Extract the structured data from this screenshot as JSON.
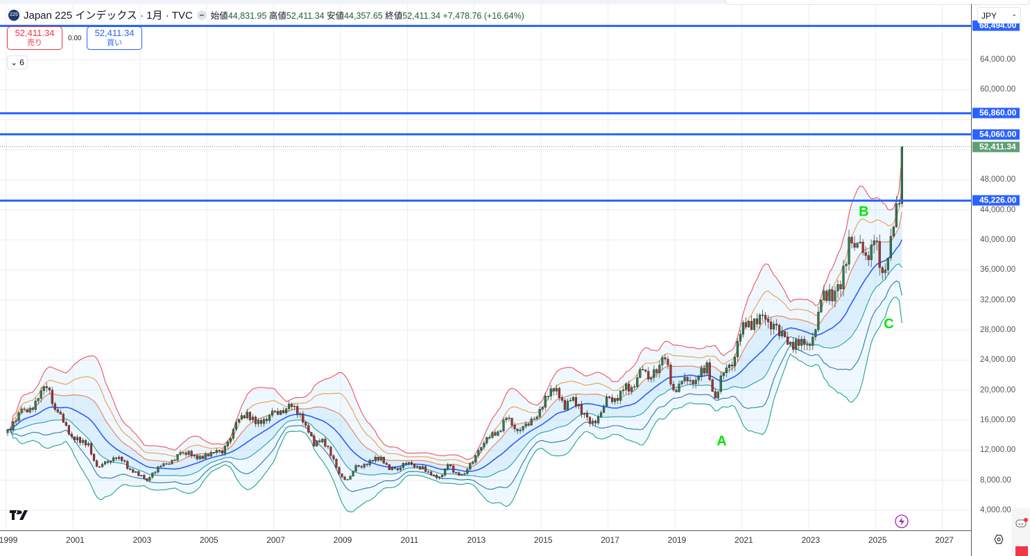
{
  "header": {
    "symbol_badge": "225",
    "title": "Japan 225 インデックス · 1月 · TVC",
    "open_label": "始値",
    "open": "44,831.95",
    "high_label": "高値",
    "high": "52,411.34",
    "low_label": "安値",
    "low": "44,357.65",
    "close_label": "終値",
    "close": "52,411.34",
    "change": "+7,478.76 (+16.64%)"
  },
  "trade": {
    "sell_price": "52,411.34",
    "sell_label": "売り",
    "spread": "0.00",
    "buy_price": "52,411.34",
    "buy_label": "買い"
  },
  "indicators_collapse": {
    "count": "6"
  },
  "currency": "JPY",
  "colors": {
    "up": "#2f7a4e",
    "down": "#a8322a",
    "hline": "#2962ff",
    "last": "#5f9e76",
    "annotation": "#00e600"
  },
  "chart_data": {
    "type": "candlestick",
    "title": "Japan 225 インデックス · 1月 · TVC",
    "interval": "monthly",
    "start": {
      "year": 1999,
      "month": 1
    },
    "quarterly_closes": [
      15800,
      17500,
      17600,
      18900,
      20300,
      17400,
      15700,
      13800,
      13000,
      12900,
      9800,
      10500,
      11000,
      10600,
      9400,
      8600,
      7970,
      9080,
      10200,
      10680,
      11700,
      11860,
      10820,
      11490,
      11670,
      11580,
      13570,
      16110,
      17060,
      15500,
      16130,
      17230,
      17290,
      18140,
      16790,
      15300,
      12530,
      13480,
      11260,
      8860,
      8110,
      9960,
      10130,
      10550,
      11090,
      9380,
      9370,
      10230,
      9750,
      9820,
      8700,
      8450,
      10080,
      9000,
      8870,
      10400,
      12400,
      13680,
      14450,
      16290,
      14830,
      15160,
      16170,
      17450,
      19200,
      20240,
      17390,
      19030,
      16760,
      15580,
      16450,
      19110,
      18910,
      20030,
      20360,
      22760,
      21450,
      22300,
      24120,
      20010,
      21200,
      21280,
      21760,
      23660,
      18920,
      22290,
      23190,
      27440,
      29180,
      28790,
      29450,
      28790,
      27820,
      26390,
      25940,
      26090,
      28040,
      33190,
      31860,
      33460,
      40370,
      39580,
      37920,
      39890,
      35620,
      40490,
      44831.95,
      52411.34
    ],
    "last_candle": {
      "year": 2025,
      "month": 10,
      "open": 44831.95,
      "high": 52411.34,
      "low": 44357.65,
      "close": 52411.34
    },
    "indicator": {
      "type": "bollinger",
      "period": 20,
      "multipliers": [
        1,
        2,
        3
      ]
    },
    "ylim": [
      4000,
      70800
    ],
    "xlim": [
      1999,
      2028.1
    ],
    "y_ticks": [
      "4,000.00",
      "8,000.00",
      "12,000.00",
      "16,000.00",
      "20,000.00",
      "24,000.00",
      "28,000.00",
      "32,000.00",
      "36,000.00",
      "40,000.00",
      "44,000.00",
      "48,000.00",
      "60,000.00",
      "64,000.00"
    ],
    "y_tick_values": [
      4000,
      8000,
      12000,
      16000,
      20000,
      24000,
      28000,
      32000,
      36000,
      40000,
      44000,
      48000,
      60000,
      64000
    ],
    "x_ticks": [
      "1999",
      "2001",
      "2003",
      "2005",
      "2007",
      "2009",
      "2011",
      "2013",
      "2015",
      "2017",
      "2019",
      "2021",
      "2023",
      "2025",
      "2027"
    ],
    "x_tick_values": [
      1999,
      2001,
      2003,
      2005,
      2007,
      2009,
      2011,
      2013,
      2015,
      2017,
      2019,
      2021,
      2023,
      2025,
      2027
    ],
    "horizontal_lines": [
      {
        "value": 68494,
        "label": "68,494.00"
      },
      {
        "value": 56860,
        "label": "56,860.00"
      },
      {
        "value": 54060,
        "label": "54,060.00"
      },
      {
        "value": 45226,
        "label": "45,226.00"
      }
    ],
    "last_price": {
      "value": 52411.34,
      "label": "52,411.34"
    },
    "annotations": [
      {
        "text": "A",
        "year": 2020.4,
        "price": 13100
      },
      {
        "text": "B",
        "year": 2024.65,
        "price": 43700
      },
      {
        "text": "C",
        "year": 2025.4,
        "price": 28700
      }
    ]
  }
}
